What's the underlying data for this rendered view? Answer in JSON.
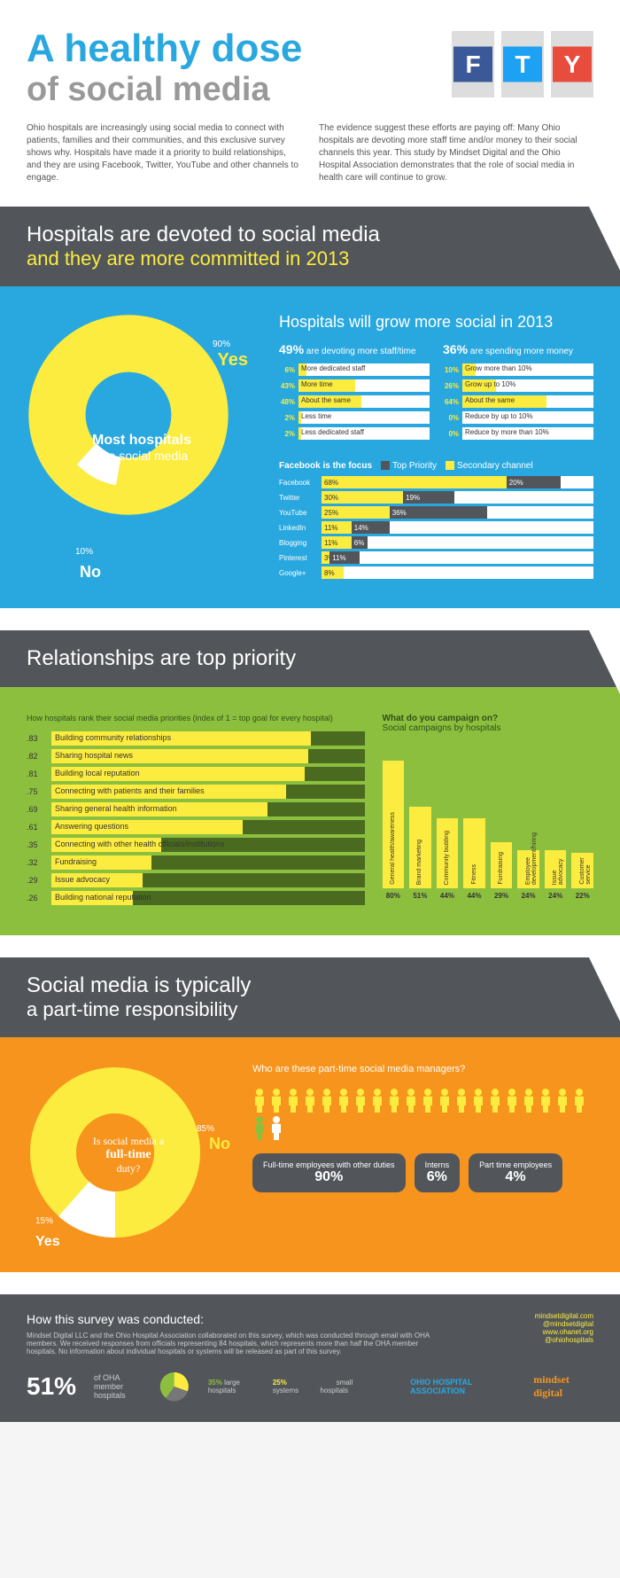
{
  "colors": {
    "blue": "#29a8df",
    "yellow": "#fcec3f",
    "green": "#8dbf3f",
    "darkgreen": "#4a6b1f",
    "orange": "#f7941d",
    "gray": "#52565b",
    "titleblue": "#29a8df"
  },
  "header": {
    "line1": "A healthy dose",
    "line2": "of social media",
    "bottles": [
      {
        "letter": "F",
        "bg": "#3b5998"
      },
      {
        "letter": "T",
        "bg": "#1da1f2"
      },
      {
        "letter": "Y",
        "bg": "#e84c3d"
      }
    ]
  },
  "intro": {
    "left": "Ohio hospitals are increasingly using social media to connect with patients, families and their communities, and this exclusive survey shows why. Hospitals have made it a priority to build relationships, and they are using Facebook, Twitter, YouTube and other channels to engage.",
    "right": "The evidence suggest these efforts are paying off: Many Ohio hospitals are devoting more staff time and/or money to their social channels this year. This study by Mindset Digital and the Ohio Hospital Association demonstrates that the role of social media in health care will continue to grow."
  },
  "section1": {
    "banner": {
      "title": "Hospitals are devoted to social media",
      "sub": "and they are more committed in 2013",
      "subcolor": "#fcec3f"
    },
    "donut": {
      "yes": 90,
      "no": 10,
      "center1": "Most hospitals",
      "center2": "use social media",
      "yeslabel": "Yes",
      "nolabel": "No"
    },
    "grow_head": "Hospitals will grow more social in 2013",
    "col1": {
      "head_pct": "49%",
      "head_txt": "are devoting more staff/time",
      "rows": [
        {
          "p": 6,
          "l": "More dedicated staff"
        },
        {
          "p": 43,
          "l": "More time"
        },
        {
          "p": 48,
          "l": "About the same"
        },
        {
          "p": 2,
          "l": "Less time"
        },
        {
          "p": 2,
          "l": "Less dedicated staff"
        }
      ]
    },
    "col2": {
      "head_pct": "36%",
      "head_txt": "are spending more money",
      "rows": [
        {
          "p": 10,
          "l": "Grow more than 10%"
        },
        {
          "p": 26,
          "l": "Grow up to 10%"
        },
        {
          "p": 64,
          "l": "About the same"
        },
        {
          "p": 0,
          "l": "Reduce by up to 10%"
        },
        {
          "p": 0,
          "l": "Reduce by more than 10%"
        }
      ]
    },
    "focus_head": "Facebook is the focus",
    "legend1": "Top Priority",
    "legend2": "Secondary channel",
    "channels": [
      {
        "n": "Facebook",
        "p1": 68,
        "p2": 20
      },
      {
        "n": "Twitter",
        "p1": 30,
        "p2": 19
      },
      {
        "n": "YouTube",
        "p1": 25,
        "p2": 36
      },
      {
        "n": "LinkedIn",
        "p1": 11,
        "p2": 14
      },
      {
        "n": "Blogging",
        "p1": 11,
        "p2": 6
      },
      {
        "n": "Pinterest",
        "p1": 3,
        "p2": 11
      },
      {
        "n": "Google+",
        "p1": 8,
        "p2": 0
      }
    ]
  },
  "section2": {
    "banner": {
      "title": "Relationships are top priority"
    },
    "pri_head": "How hospitals rank their social media priorities (index of 1 = top goal for every hospital)",
    "priorities": [
      {
        "i": ".83",
        "l": "Building community relationships"
      },
      {
        "i": ".82",
        "l": "Sharing hospital news"
      },
      {
        "i": ".81",
        "l": "Building local reputation"
      },
      {
        "i": ".75",
        "l": "Connecting with patients and their families"
      },
      {
        "i": ".69",
        "l": "Sharing general health information"
      },
      {
        "i": ".61",
        "l": "Answering questions"
      },
      {
        "i": ".35",
        "l": "Connecting with other health officials/institutions"
      },
      {
        "i": ".32",
        "l": "Fundraising"
      },
      {
        "i": ".29",
        "l": "Issue advocacy"
      },
      {
        "i": ".26",
        "l": "Building national reputation"
      }
    ],
    "camp_head1": "What do you campaign on?",
    "camp_head2": "Social campaigns by hospitals",
    "campaigns": [
      {
        "l": "General health/awareness",
        "p": 80
      },
      {
        "l": "Brand marketing",
        "p": 51
      },
      {
        "l": "Community building",
        "p": 44
      },
      {
        "l": "Fitness",
        "p": 44
      },
      {
        "l": "Fundraising",
        "p": 29
      },
      {
        "l": "Employee development/hiring",
        "p": 24
      },
      {
        "l": "Issue advocacy",
        "p": 24
      },
      {
        "l": "Customer service",
        "p": 22
      }
    ]
  },
  "section3": {
    "banner": {
      "title": "Social media is typically",
      "sub": "a part-time responsibility"
    },
    "donut": {
      "yes": 15,
      "no": 85,
      "center1": "Is social media a",
      "center2": "full-time",
      "center3": "duty?",
      "yeslabel": "Yes",
      "nolabel": "No"
    },
    "right_head": "Who are these part-time social media managers?",
    "callouts": [
      {
        "t": "Full-time employees with other duties",
        "v": "90%"
      },
      {
        "t": "Interns",
        "v": "6%"
      },
      {
        "t": "Part time employees",
        "v": "4%"
      }
    ]
  },
  "footer": {
    "head": "How this survey was conducted:",
    "body": "Mindset Digital LLC and the Ohio Hospital Association collaborated on this survey, which was conducted through email with OHA members. We received responses from officials representing 84 hospitals, which represents more than half the OHA member hospitals. No information about individual hospitals or systems will be released as part of this survey.",
    "big": "51%",
    "big_txt": "of OHA member hospitals",
    "breakdown": [
      {
        "p": "35%",
        "l": "large hospitals",
        "c": "#8dbf3f"
      },
      {
        "p": "25%",
        "l": "systems",
        "c": "#fcec3f"
      },
      {
        "p": "40%",
        "l": "small hospitals",
        "c": "#52565b"
      }
    ],
    "links": [
      "mindsetdigital.com",
      "@mindsetdigital",
      "www.ohanet.org",
      "@ohiohospitals"
    ],
    "logo1": "OHIO HOSPITAL ASSOCIATION",
    "logo2": "mindset digital"
  }
}
